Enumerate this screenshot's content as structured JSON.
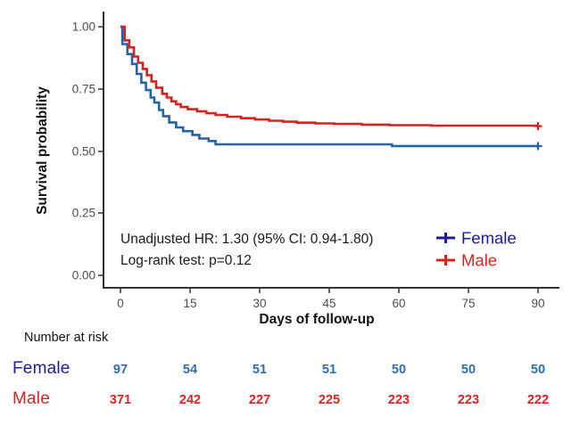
{
  "colors": {
    "female_curve": "#2363a8",
    "male_curve": "#d9221f",
    "female_label": "#1b1b9e",
    "female_counts": "#2e6fb2",
    "male_label": "#e02120",
    "axis_text": "#4d4d4d",
    "axis_line": "#1a1a1a"
  },
  "chart_data": {
    "type": "line",
    "subtype": "kaplan-meier-step",
    "title": "",
    "xlabel": "Days of follow-up",
    "ylabel": "Survival probability",
    "xlim": [
      0,
      90
    ],
    "ylim": [
      0,
      1
    ],
    "grid": false,
    "x_ticks": [
      0,
      15,
      30,
      45,
      60,
      75,
      90
    ],
    "x_tick_labels": [
      "0",
      "15",
      "30",
      "45",
      "60",
      "75",
      "90"
    ],
    "y_ticks": [
      0,
      0.25,
      0.5,
      0.75,
      1
    ],
    "y_tick_labels": [
      "0.00",
      "0.25",
      "0.50",
      "0.75",
      "1.00"
    ],
    "series": [
      {
        "name": "Female",
        "color": "#2363a8",
        "steps": [
          [
            0,
            1.0
          ],
          [
            0.4,
            0.93
          ],
          [
            1.5,
            0.89
          ],
          [
            2.5,
            0.85
          ],
          [
            3.5,
            0.81
          ],
          [
            4.5,
            0.775
          ],
          [
            5.5,
            0.745
          ],
          [
            6.5,
            0.715
          ],
          [
            7.3,
            0.695
          ],
          [
            8.3,
            0.665
          ],
          [
            9.2,
            0.64
          ],
          [
            10.5,
            0.615
          ],
          [
            12,
            0.595
          ],
          [
            13.5,
            0.58
          ],
          [
            15.5,
            0.565
          ],
          [
            17,
            0.55
          ],
          [
            19,
            0.54
          ],
          [
            20.5,
            0.527
          ],
          [
            58.5,
            0.52
          ],
          [
            90,
            0.52
          ]
        ],
        "censor_marks": [
          [
            90,
            0.52
          ]
        ]
      },
      {
        "name": "Male",
        "color": "#d9221f",
        "steps": [
          [
            0,
            1.0
          ],
          [
            0.9,
            0.945
          ],
          [
            1.9,
            0.917
          ],
          [
            2.9,
            0.88
          ],
          [
            3.8,
            0.855
          ],
          [
            4.8,
            0.83
          ],
          [
            5.7,
            0.805
          ],
          [
            6.7,
            0.78
          ],
          [
            7.7,
            0.755
          ],
          [
            9,
            0.73
          ],
          [
            10,
            0.715
          ],
          [
            11,
            0.7
          ],
          [
            12,
            0.688
          ],
          [
            13,
            0.677
          ],
          [
            14.5,
            0.668
          ],
          [
            16.5,
            0.66
          ],
          [
            18.5,
            0.652
          ],
          [
            20.5,
            0.645
          ],
          [
            23,
            0.638
          ],
          [
            26,
            0.632
          ],
          [
            29,
            0.627
          ],
          [
            32,
            0.622
          ],
          [
            35,
            0.618
          ],
          [
            38,
            0.614
          ],
          [
            42,
            0.611
          ],
          [
            46,
            0.609
          ],
          [
            52,
            0.606
          ],
          [
            58,
            0.604
          ],
          [
            67,
            0.602
          ],
          [
            90,
            0.6
          ]
        ],
        "censor_marks": [
          [
            90,
            0.6
          ]
        ]
      }
    ],
    "annotation": {
      "line1": "Unadjusted HR: 1.30 (95% CI: 0.94-1.80)",
      "line2": "Log-rank test: p=0.12"
    },
    "legend": {
      "position": "right-bottom",
      "entries": [
        {
          "label": "Female",
          "color": "#1b1b9e"
        },
        {
          "label": "Male",
          "color": "#e02120"
        }
      ]
    }
  },
  "risk_table": {
    "header": "Number at risk",
    "rows": [
      {
        "label": "Female",
        "counts": [
          "97",
          "54",
          "51",
          "51",
          "50",
          "50",
          "50"
        ]
      },
      {
        "label": "Male",
        "counts": [
          "371",
          "242",
          "227",
          "225",
          "223",
          "223",
          "222"
        ]
      }
    ]
  }
}
